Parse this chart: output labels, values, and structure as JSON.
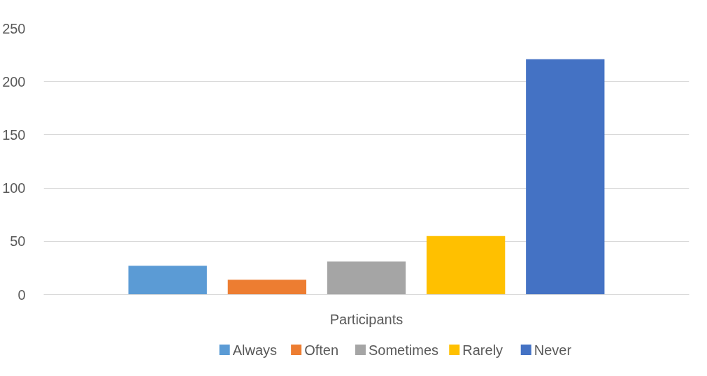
{
  "chart_data": {
    "type": "bar",
    "categories": [
      "Participants"
    ],
    "series": [
      {
        "name": "Always",
        "color": "#5b9bd5",
        "values": [
          27
        ]
      },
      {
        "name": "Often",
        "color": "#ed7d31",
        "values": [
          14
        ]
      },
      {
        "name": "Sometimes",
        "color": "#a5a5a5",
        "values": [
          31
        ]
      },
      {
        "name": "Rarely",
        "color": "#ffc000",
        "values": [
          55
        ]
      },
      {
        "name": "Never",
        "color": "#4472c4",
        "values": [
          221
        ]
      }
    ],
    "ylim": [
      0,
      250
    ],
    "yticks": [
      0,
      50,
      100,
      150,
      200,
      250
    ],
    "grid": "y",
    "legend": "bottom"
  }
}
